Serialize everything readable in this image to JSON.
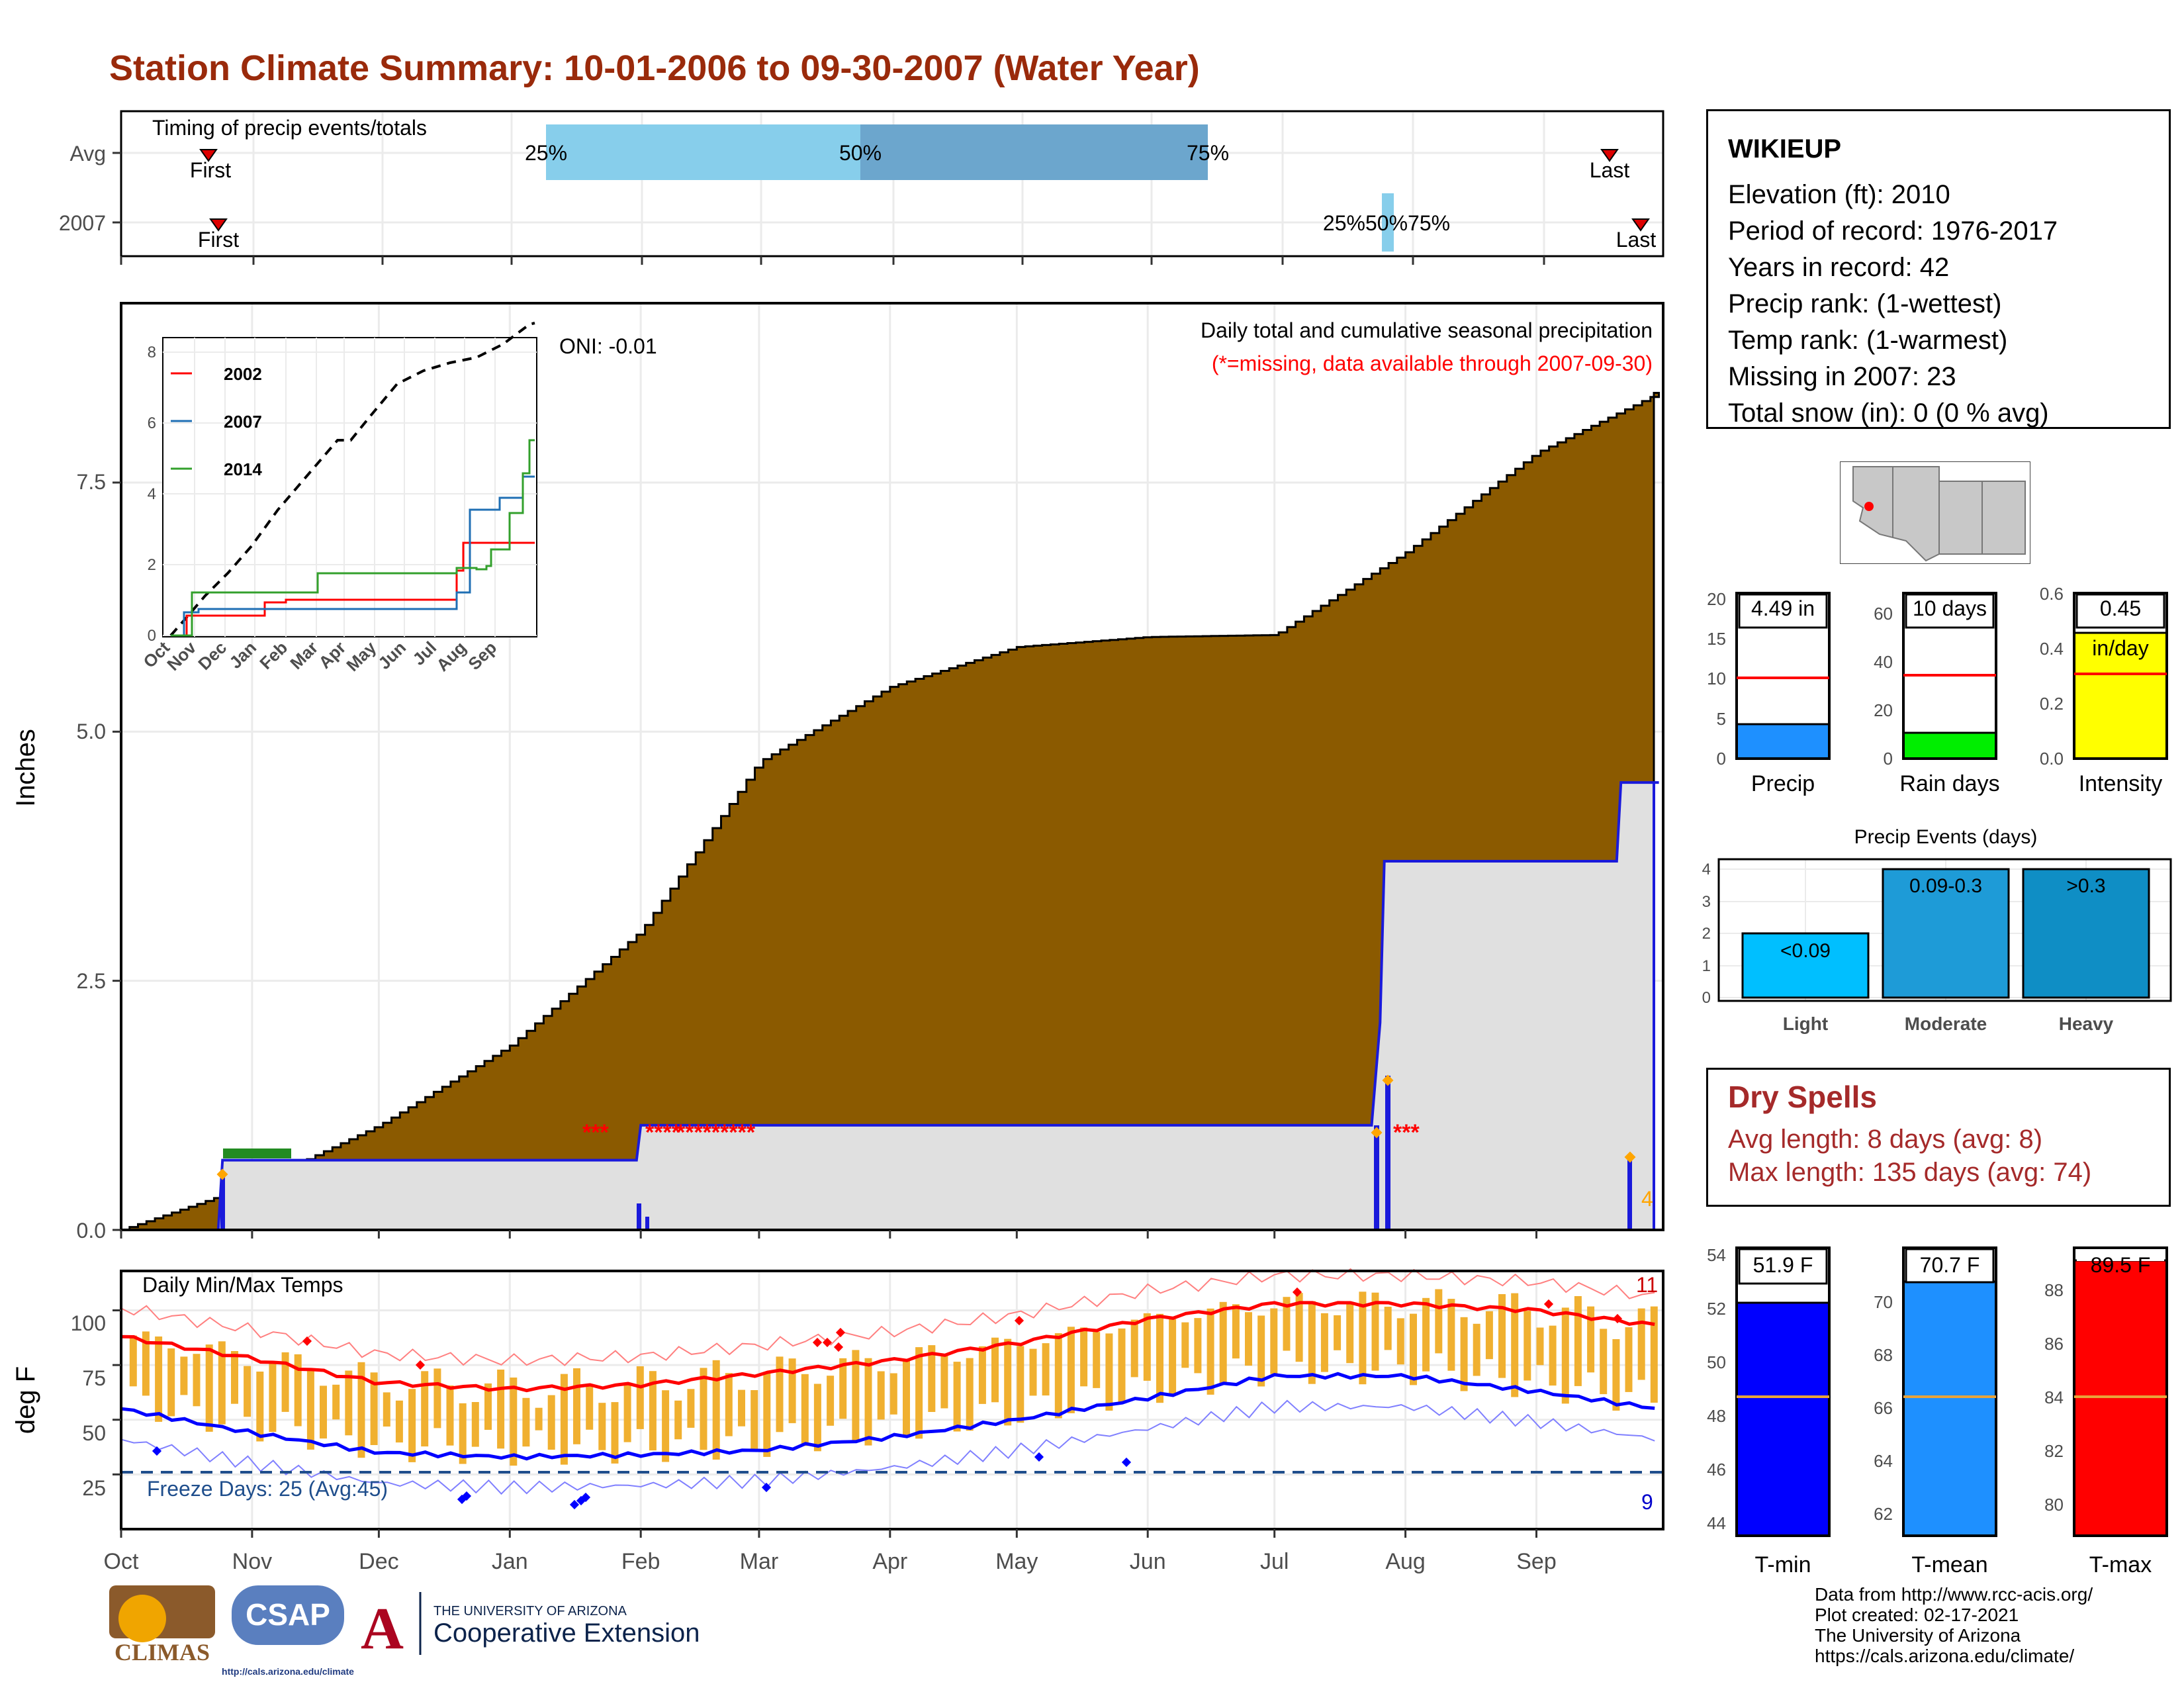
{
  "title": "Station Climate Summary: 10-01-2006 to 09-30-2007 (Water Year)",
  "timing": {
    "heading": "Timing of precip events/totals",
    "rows": [
      {
        "label": "Avg",
        "first": "First",
        "last": "Last",
        "p25": "25%",
        "p50": "50%",
        "p75": "75%"
      },
      {
        "label": "2007",
        "first": "First",
        "last": "Last",
        "overlap": "25%50%75%"
      }
    ]
  },
  "main_precip": {
    "title": "Daily total and cumulative seasonal precipitation",
    "missing_note": "(*=missing, data available through 2007-09-30)",
    "oni": "ONI: -0.01",
    "ylabel": "Inches",
    "yticks": [
      "0.0",
      "2.5",
      "5.0",
      "7.5"
    ],
    "corner_value": "4"
  },
  "months": [
    "Oct",
    "Nov",
    "Dec",
    "Jan",
    "Feb",
    "Mar",
    "Apr",
    "May",
    "Jun",
    "Jul",
    "Aug",
    "Sep"
  ],
  "inset": {
    "legend": [
      "2002",
      "2007",
      "2014"
    ],
    "yticks": [
      "0",
      "2",
      "4",
      "6",
      "8"
    ],
    "xticks": [
      "Oct",
      "Nov",
      "Dec",
      "Jan",
      "Feb",
      "Mar",
      "Apr",
      "May",
      "Jun",
      "Jul",
      "Aug",
      "Sep"
    ]
  },
  "temps": {
    "title": "Daily Min/Max Temps",
    "ylabel": "deg F",
    "yticks": [
      "25",
      "50",
      "75",
      "100"
    ],
    "freeze": "Freeze Days: 25 (Avg:45)",
    "hot_count": "11",
    "cold_count": "9"
  },
  "station": {
    "name": "WIKIEUP",
    "lines": [
      "Elevation (ft): 2010",
      "Period of record: 1976-2017",
      "Years in record: 42",
      "Precip rank:  (1-wettest)",
      "Temp rank:  (1-warmest)",
      "Missing in 2007: 23",
      "Total snow (in): 0 (0 % avg)"
    ]
  },
  "bars": {
    "precip": {
      "label": "Precip",
      "value_text": "4.49 in",
      "yticks": [
        "0",
        "5",
        "10",
        "15",
        "20"
      ]
    },
    "raindays": {
      "label": "Rain days",
      "value_text": "10 days",
      "yticks": [
        "0",
        "20",
        "40",
        "60"
      ]
    },
    "intensity": {
      "label": "Intensity",
      "value_text": "0.45",
      "unit": "in/day",
      "yticks": [
        "0.0",
        "0.2",
        "0.4",
        "0.6"
      ]
    }
  },
  "events": {
    "title": "Precip Events (days)",
    "categories": [
      "Light",
      "Moderate",
      "Heavy"
    ],
    "bar_labels": [
      "<0.09",
      "0.09-0.3",
      ">0.3"
    ],
    "yticks": [
      "0",
      "1",
      "2",
      "3",
      "4"
    ]
  },
  "dry_spells": {
    "title": "Dry Spells",
    "avg": "Avg length: 8 days (avg: 8)",
    "max": "Max length: 135 days (avg: 74)"
  },
  "tbars": {
    "tmin": {
      "label": "T-min",
      "value_text": "51.9 F",
      "yticks": [
        "44",
        "46",
        "48",
        "50",
        "52",
        "54"
      ]
    },
    "tmean": {
      "label": "T-mean",
      "value_text": "70.7 F",
      "yticks": [
        "62",
        "64",
        "66",
        "68",
        "70"
      ]
    },
    "tmax": {
      "label": "T-max",
      "value_text": "89.5 F",
      "yticks": [
        "80",
        "82",
        "84",
        "86",
        "88"
      ]
    }
  },
  "credits": [
    "Data from http://www.rcc-acis.org/",
    "Plot created: 02-17-2021",
    "The University of Arizona",
    "https://cals.arizona.edu/climate/"
  ],
  "logos": {
    "climas": "CLIMAS",
    "csap": "CSAP",
    "csap_url": "http://cals.arizona.edu/climate",
    "ua_top": "THE UNIVERSITY OF ARIZONA",
    "ua_bottom": "Cooperative Extension"
  },
  "colors": {
    "title": "#9a2a0b",
    "cumulative": "#8b5a00",
    "cum2007": "#1a1adb",
    "precip_bar": "#1e90ff",
    "raindays_bar": "#00ee00",
    "intensity_bar": "#ffff00",
    "tmin": "#0000ff",
    "tmean": "#1e90ff",
    "tmax": "#ff0000",
    "temp_bars": "#f0b030"
  },
  "chart_data": [
    {
      "type": "area",
      "title": "Daily total and cumulative seasonal precipitation",
      "ylabel": "Inches",
      "ylim": [
        0,
        9.3
      ],
      "series": [
        {
          "name": "avg cumulative",
          "x": [
            "Oct 1",
            "Nov 1",
            "Dec 1",
            "Jan 1",
            "Feb 1",
            "Mar 1",
            "Apr 1",
            "May 1",
            "Jun 1",
            "Jul 1",
            "Aug 1",
            "Sep 1",
            "Sep 30"
          ],
          "values": [
            0.0,
            0.45,
            1.05,
            1.85,
            3.0,
            4.7,
            5.45,
            5.85,
            5.95,
            5.97,
            6.8,
            7.8,
            8.4
          ]
        },
        {
          "name": "2007 cumulative",
          "x": [
            "Oct 1",
            "Oct 24",
            "Oct 25",
            "Jan 31",
            "Feb 1",
            "Jul 24",
            "Jul 26",
            "Jul 27",
            "Sep 20",
            "Sep 21",
            "Sep 30"
          ],
          "values": [
            0.0,
            0.0,
            0.7,
            0.7,
            1.05,
            1.05,
            2.08,
            3.7,
            3.7,
            4.49,
            4.49
          ]
        }
      ]
    },
    {
      "type": "line",
      "title": "Daily Min/Max Temps",
      "ylabel": "deg F",
      "ylim": [
        0,
        118
      ],
      "series": [
        {
          "name": "avg max",
          "x": [
            "Oct",
            "Nov",
            "Dec",
            "Jan",
            "Feb",
            "Mar",
            "Apr",
            "May",
            "Jun",
            "Jul",
            "Aug",
            "Sep",
            "Sep 30"
          ],
          "values": [
            88,
            78,
            67,
            64,
            66,
            71,
            77,
            85,
            96,
            103,
            103,
            100,
            93
          ]
        },
        {
          "name": "avg min",
          "x": [
            "Oct",
            "Nov",
            "Dec",
            "Jan",
            "Feb",
            "Mar",
            "Apr",
            "May",
            "Jun",
            "Jul",
            "Aug",
            "Sep",
            "Sep 30"
          ],
          "values": [
            55,
            44,
            35,
            33,
            34,
            36,
            42,
            50,
            60,
            70,
            70,
            63,
            55
          ]
        }
      ]
    },
    {
      "type": "bar",
      "categories": [
        "Light",
        "Moderate",
        "Heavy"
      ],
      "values": [
        2,
        4,
        4
      ],
      "ylim": [
        0,
        4.2
      ]
    },
    {
      "type": "bar",
      "categories": [
        "Precip",
        "Rain days",
        "Intensity"
      ],
      "values": [
        4.49,
        10,
        0.45
      ],
      "averages": [
        10.5,
        35,
        0.31
      ]
    },
    {
      "type": "bar",
      "categories": [
        "T-min",
        "T-mean",
        "T-max"
      ],
      "values": [
        51.9,
        70.7,
        89.5
      ],
      "averages": [
        48.6,
        66.5,
        84.3
      ]
    }
  ]
}
